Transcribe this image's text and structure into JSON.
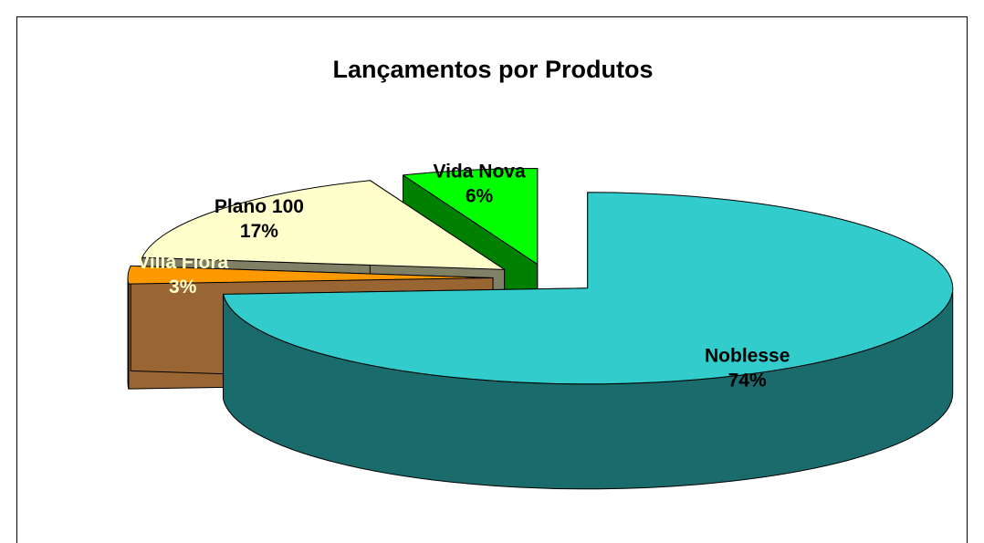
{
  "chart_data": {
    "type": "pie3d",
    "title": "Lançamentos por Produtos",
    "categories": [
      "Noblesse",
      "Villa Flora",
      "Plano 100",
      "Vida Nova"
    ],
    "values": [
      74,
      3,
      17,
      6
    ],
    "value_labels": [
      "74%",
      "3%",
      "17%",
      "6%"
    ],
    "colors": [
      "#33CCCC",
      "#FF9900",
      "#FFFFCC",
      "#00FF00"
    ],
    "side_colors": [
      "#1A6B6B",
      "#996633",
      "#808066",
      "#008000"
    ],
    "label_colors": [
      "#000000",
      "#FFFFCC",
      "#000000",
      "#000000"
    ]
  }
}
